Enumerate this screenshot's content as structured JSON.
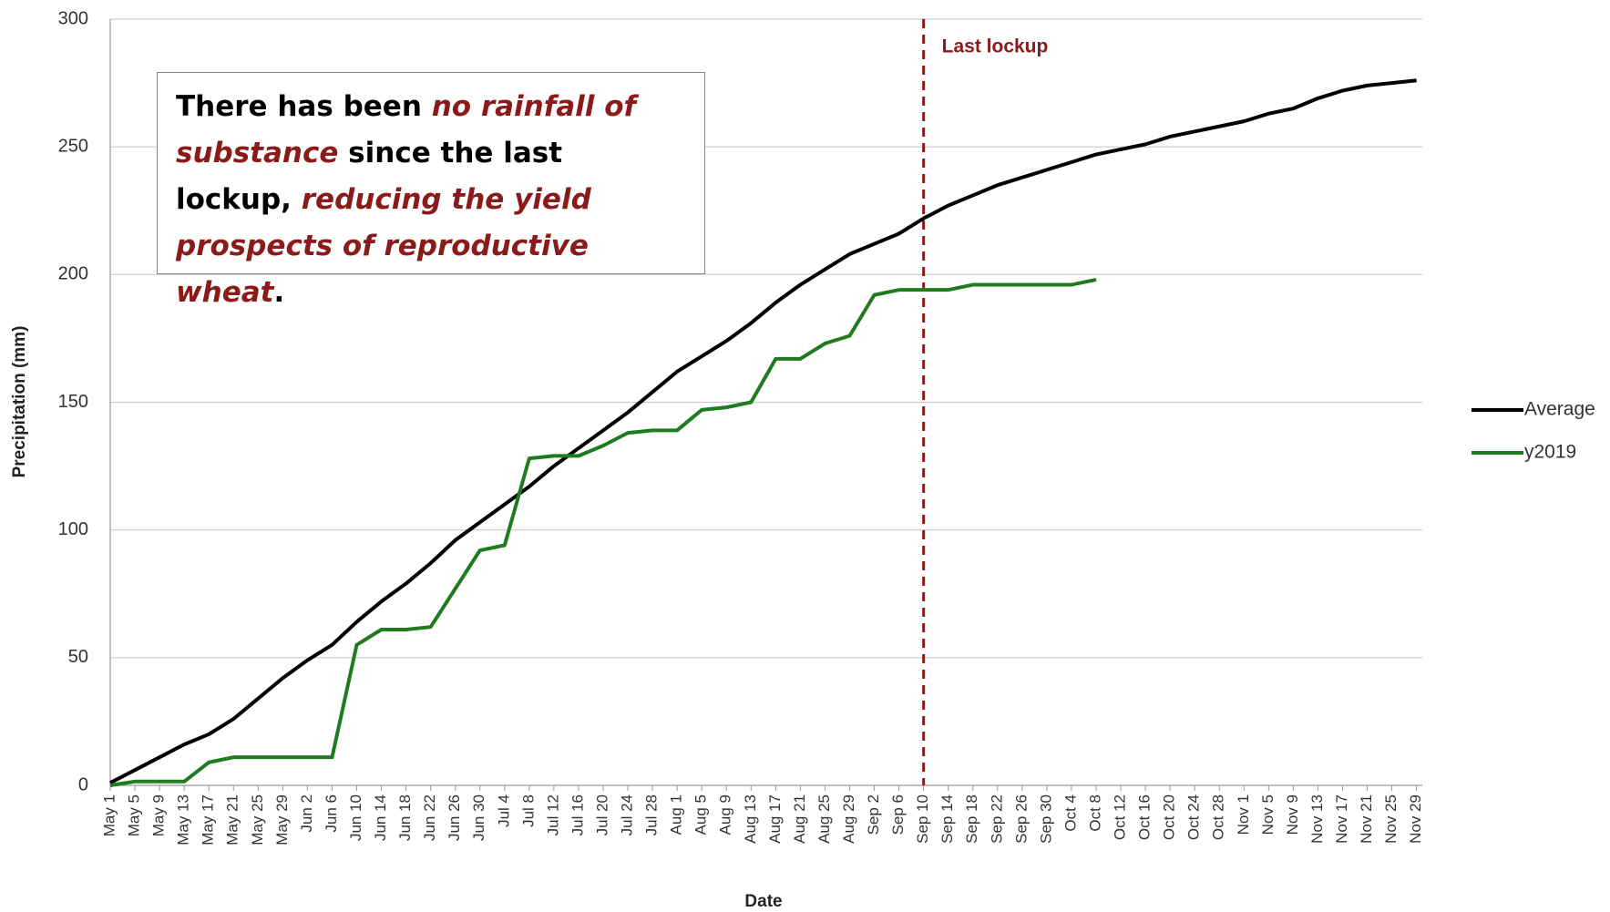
{
  "chart_data": {
    "type": "line",
    "ylabel": "Precipitation (mm)",
    "xlabel": "Date",
    "categories": [
      "May 1",
      "May 5",
      "May 9",
      "May 13",
      "May 17",
      "May 21",
      "May 25",
      "May 29",
      "Jun 2",
      "Jun 6",
      "Jun 10",
      "Jun 14",
      "Jun 18",
      "Jun 22",
      "Jun 26",
      "Jun 30",
      "Jul 4",
      "Jul 8",
      "Jul 12",
      "Jul 16",
      "Jul 20",
      "Jul 24",
      "Jul 28",
      "Aug 1",
      "Aug 5",
      "Aug 9",
      "Aug 13",
      "Aug 17",
      "Aug 21",
      "Aug 25",
      "Aug 29",
      "Sep 2",
      "Sep 6",
      "Sep 10",
      "Sep 14",
      "Sep 18",
      "Sep 22",
      "Sep 26",
      "Sep 30",
      "Oct 4",
      "Oct 8",
      "Oct 12",
      "Oct 16",
      "Oct 20",
      "Oct 24",
      "Oct 28",
      "Nov 1",
      "Nov 5",
      "Nov 9",
      "Nov 13",
      "Nov 17",
      "Nov 21",
      "Nov 25",
      "Nov 29"
    ],
    "series": [
      {
        "name": "Average",
        "color": "#000000",
        "values": [
          1,
          6,
          11,
          16,
          20,
          26,
          34,
          42,
          49,
          55,
          64,
          72,
          79,
          87,
          96,
          103,
          110,
          117,
          125,
          132,
          139,
          146,
          154,
          162,
          168,
          174,
          181,
          189,
          196,
          202,
          208,
          212,
          216,
          222,
          227,
          231,
          235,
          238,
          241,
          244,
          247,
          249,
          251,
          254,
          256,
          258,
          260,
          263,
          265,
          269,
          272,
          274,
          275,
          276
        ]
      },
      {
        "name": "y2019",
        "color": "#1e7b1e",
        "values": [
          0,
          1.5,
          1.5,
          1.5,
          9,
          11,
          11,
          11,
          11,
          11,
          55,
          61,
          61,
          62,
          77,
          92,
          94,
          128,
          129,
          129,
          133,
          138,
          139,
          139,
          147,
          148,
          150,
          167,
          167,
          173,
          176,
          192,
          194,
          194,
          194,
          196,
          196,
          196,
          196,
          196,
          198,
          null,
          null,
          null,
          null,
          null,
          null,
          null,
          null,
          null,
          null,
          null,
          null,
          null
        ]
      }
    ],
    "ylim": [
      0,
      300
    ],
    "yticks": [
      0,
      50,
      100,
      150,
      200,
      250,
      300
    ],
    "grid": true,
    "legend": "right",
    "marker_line": {
      "x": "Sep 10",
      "label": "Last lockup",
      "color": "#8b1a1a"
    },
    "annotation": [
      {
        "text": "There has been ",
        "style": "normal"
      },
      {
        "text": "no rainfall of substance",
        "style": "emphasis"
      },
      {
        "text": " since the last lockup, ",
        "style": "normal"
      },
      {
        "text": "reducing the yield prospects of reproductive wheat",
        "style": "emphasis"
      },
      {
        "text": ".",
        "style": "normal"
      }
    ]
  }
}
